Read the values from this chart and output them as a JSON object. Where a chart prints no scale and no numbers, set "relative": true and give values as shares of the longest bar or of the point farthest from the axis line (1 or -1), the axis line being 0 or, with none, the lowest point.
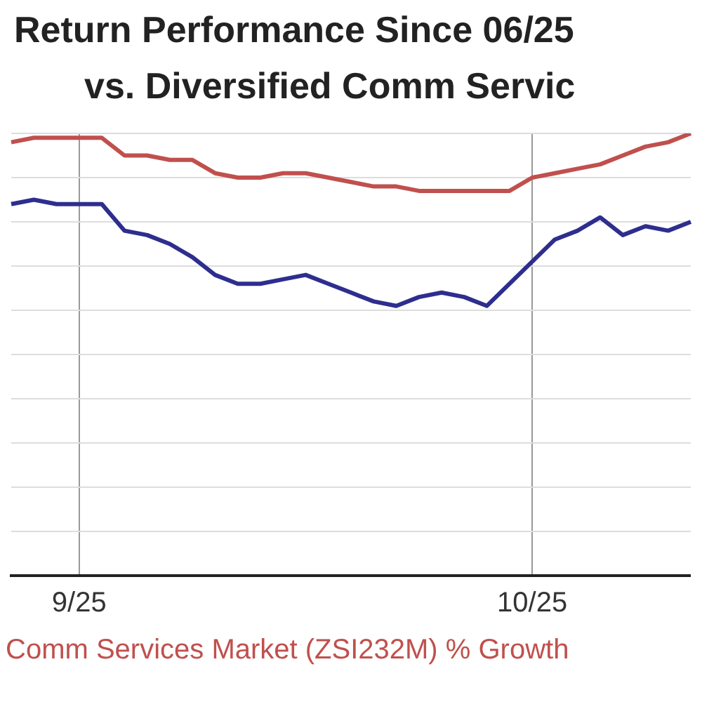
{
  "chart_data": {
    "type": "line",
    "title": "Return Performance Since 06/25",
    "subtitle": "vs. Diversified Comm Servic",
    "relative": true,
    "grid": true,
    "legend": "bottom",
    "marker": "none",
    "line_style": "solid",
    "categories": [
      null,
      null,
      null,
      "9/25",
      null,
      null,
      null,
      null,
      null,
      null,
      null,
      null,
      null,
      null,
      null,
      null,
      null,
      null,
      null,
      null,
      null,
      null,
      null,
      "10/25",
      null,
      null,
      null,
      null,
      null,
      null,
      null
    ],
    "series": [
      {
        "name": "Comm Services Market (ZSI232M) % Growth",
        "color": "#c0504d",
        "values": [
          0.98,
          0.99,
          0.99,
          0.99,
          0.99,
          0.95,
          0.95,
          0.94,
          0.94,
          0.91,
          0.9,
          0.9,
          0.91,
          0.91,
          0.9,
          0.89,
          0.88,
          0.88,
          0.87,
          0.87,
          0.87,
          0.87,
          0.87,
          0.9,
          0.91,
          0.92,
          0.93,
          0.95,
          0.97,
          0.98,
          1
        ]
      },
      {
        "color": "#2e2e8f",
        "values": [
          0.84,
          0.85,
          0.84,
          0.84,
          0.84,
          0.78,
          0.77,
          0.75,
          0.72,
          0.68,
          0.66,
          0.66,
          0.67,
          0.68,
          0.66,
          0.64,
          0.62,
          0.61,
          0.63,
          0.64,
          0.63,
          0.61,
          0.66,
          0.71,
          0.76,
          0.78,
          0.81,
          0.77,
          0.79,
          0.78,
          0.8
        ]
      }
    ]
  }
}
